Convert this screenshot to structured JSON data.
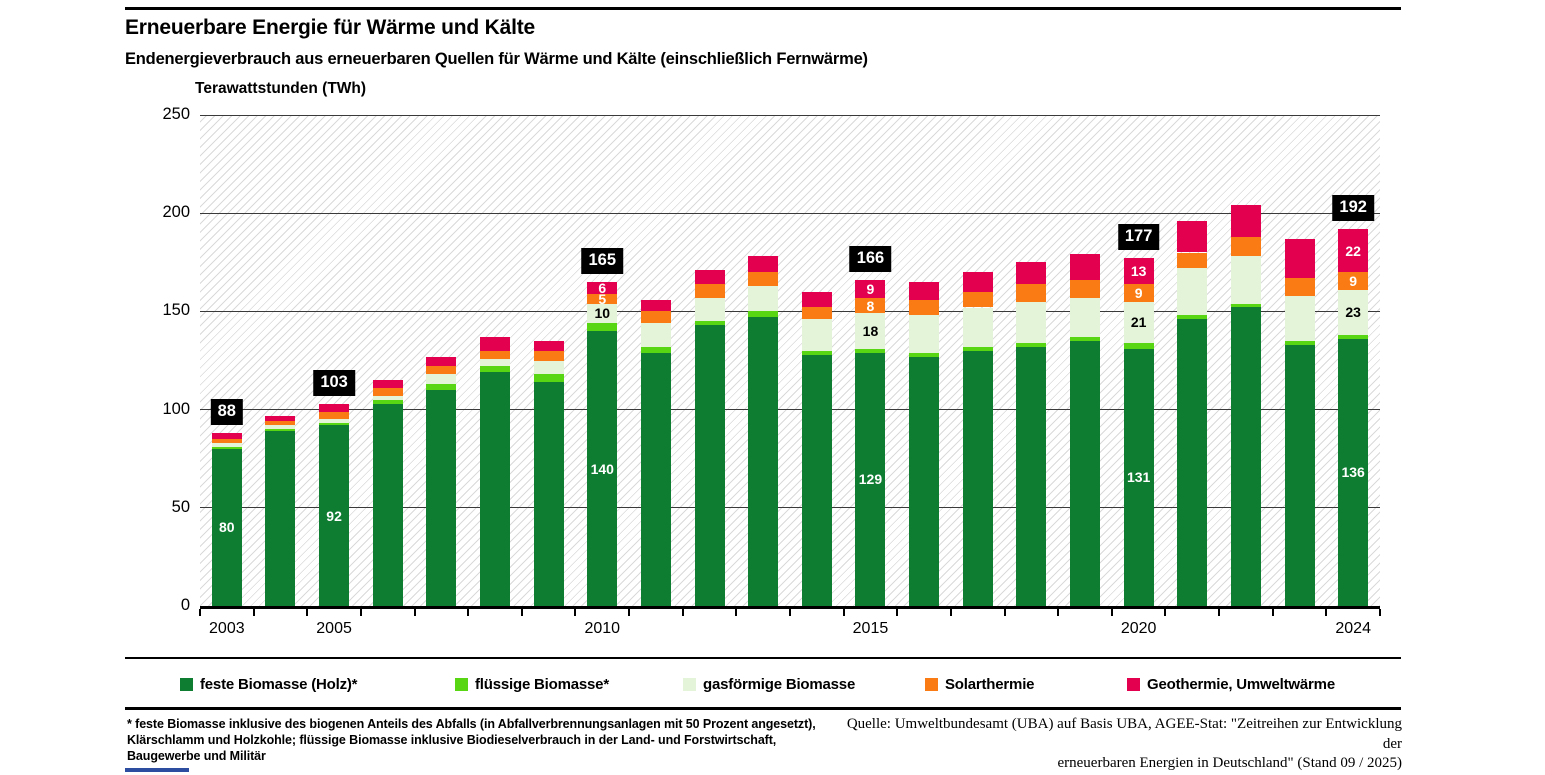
{
  "header": {
    "title": "Erneuerbare Energie für Wärme und Kälte",
    "subtitle": "Endenergieverbrauch aus erneuerbaren Quellen für Wärme und Kälte (einschließlich Fernwärme)"
  },
  "chart_data": {
    "type": "bar",
    "stacked": true,
    "title": "Erneuerbare Energie für Wärme und Kälte",
    "ylabel": "Terawattstunden (TWh)",
    "ylim": [
      0,
      250
    ],
    "yticks": [
      0,
      50,
      100,
      150,
      200,
      250
    ],
    "grid": "horizontal",
    "legend_position": "bottom",
    "categories": [
      "2003",
      "2004",
      "2005",
      "2006",
      "2007",
      "2008",
      "2009",
      "2010",
      "2011",
      "2012",
      "2013",
      "2014",
      "2015",
      "2016",
      "2017",
      "2018",
      "2019",
      "2020",
      "2021",
      "2022",
      "2023",
      "2024"
    ],
    "x_axis_shown_labels": [
      {
        "index": 0,
        "label": "2003"
      },
      {
        "index": 2,
        "label": "2005"
      },
      {
        "index": 7,
        "label": "2010"
      },
      {
        "index": 12,
        "label": "2015"
      },
      {
        "index": 17,
        "label": "2020"
      },
      {
        "index": 21,
        "label": "2024"
      }
    ],
    "series": [
      {
        "name": "feste Biomasse (Holz)*",
        "color": "#0e7c31",
        "values": [
          80,
          89,
          92,
          103,
          110,
          119,
          114,
          140,
          129,
          143,
          147,
          128,
          129,
          127,
          130,
          132,
          135,
          131,
          146,
          152,
          133,
          136
        ]
      },
      {
        "name": "flüssige Biomasse*",
        "color": "#58d513",
        "values": [
          1,
          1,
          1,
          2,
          3,
          3,
          4,
          4,
          3,
          2,
          3,
          2,
          2,
          2,
          2,
          2,
          2,
          3,
          2,
          2,
          2,
          2
        ]
      },
      {
        "name": "gasförmige Biomasse",
        "color": "#e4f4d9",
        "values": [
          2,
          2,
          2,
          2,
          5,
          4,
          7,
          10,
          12,
          12,
          13,
          16,
          18,
          19,
          20,
          21,
          20,
          21,
          24,
          24,
          23,
          23
        ]
      },
      {
        "name": "Solarthermie",
        "color": "#fa7a14",
        "values": [
          2,
          2,
          4,
          4,
          4,
          4,
          5,
          5,
          6,
          7,
          7,
          6,
          8,
          8,
          8,
          9,
          9,
          9,
          8,
          10,
          9,
          9
        ]
      },
      {
        "name": "Geothermie, Umweltwärme",
        "color": "#e3004f",
        "values": [
          3,
          3,
          4,
          4,
          5,
          7,
          5,
          6,
          6,
          7,
          8,
          8,
          9,
          9,
          10,
          11,
          13,
          13,
          16,
          16,
          20,
          22
        ]
      }
    ],
    "totals": [
      88,
      97,
      103,
      115,
      127,
      137,
      135,
      165,
      156,
      171,
      178,
      160,
      166,
      165,
      170,
      175,
      179,
      177,
      196,
      204,
      187,
      192
    ],
    "total_label_indices": [
      0,
      2,
      7,
      12,
      17,
      21
    ],
    "segment_labels": [
      {
        "year_index": 0,
        "series_index": 0,
        "text": "80",
        "text_color": "#ffffff"
      },
      {
        "year_index": 2,
        "series_index": 0,
        "text": "92",
        "text_color": "#ffffff"
      },
      {
        "year_index": 7,
        "series_index": 0,
        "text": "140",
        "text_color": "#ffffff"
      },
      {
        "year_index": 7,
        "series_index": 2,
        "text": "10",
        "text_color": "#000000"
      },
      {
        "year_index": 7,
        "series_index": 3,
        "text": "5",
        "text_color": "#ffffff"
      },
      {
        "year_index": 7,
        "series_index": 4,
        "text": "6",
        "text_color": "#ffffff"
      },
      {
        "year_index": 12,
        "series_index": 0,
        "text": "129",
        "text_color": "#ffffff"
      },
      {
        "year_index": 12,
        "series_index": 2,
        "text": "18",
        "text_color": "#000000"
      },
      {
        "year_index": 12,
        "series_index": 3,
        "text": "8",
        "text_color": "#ffffff"
      },
      {
        "year_index": 12,
        "series_index": 4,
        "text": "9",
        "text_color": "#ffffff"
      },
      {
        "year_index": 17,
        "series_index": 0,
        "text": "131",
        "text_color": "#ffffff"
      },
      {
        "year_index": 17,
        "series_index": 2,
        "text": "21",
        "text_color": "#000000"
      },
      {
        "year_index": 17,
        "series_index": 3,
        "text": "9",
        "text_color": "#ffffff"
      },
      {
        "year_index": 17,
        "series_index": 4,
        "text": "13",
        "text_color": "#ffffff"
      },
      {
        "year_index": 21,
        "series_index": 0,
        "text": "136",
        "text_color": "#ffffff"
      },
      {
        "year_index": 21,
        "series_index": 2,
        "text": "23",
        "text_color": "#000000"
      },
      {
        "year_index": 21,
        "series_index": 3,
        "text": "9",
        "text_color": "#ffffff"
      },
      {
        "year_index": 21,
        "series_index": 4,
        "text": "22",
        "text_color": "#ffffff"
      }
    ]
  },
  "legend": {
    "accent_black": "#000000"
  },
  "footnote": {
    "lines": [
      "* feste Biomasse inklusive des biogenen Anteils des Abfalls (in Abfallverbrennungsanlagen mit 50 Prozent angesetzt),",
      "Klärschlamm und Holzkohle; flüssige Biomasse inklusive Biodieselverbrauch in der Land- und Forstwirtschaft,",
      "Baugewerbe und Militär"
    ]
  },
  "source": {
    "lines": [
      "Quelle: Umweltbundesamt (UBA) auf Basis UBA, AGEE-Stat: \"Zeitreihen zur Entwicklung der",
      "erneuerbaren Energien in Deutschland\" (Stand 09 / 2025)"
    ]
  }
}
